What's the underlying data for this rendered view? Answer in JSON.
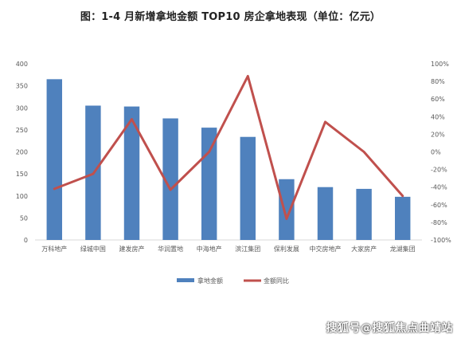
{
  "title": "图：1-4 月新增拿地金额 TOP10 房企拿地表现（单位：亿元）",
  "watermark": "搜狐号@搜狐焦点曲靖站",
  "colors": {
    "bar": "#4f81bd",
    "line": "#c0504d",
    "axis_text": "#595959",
    "axis_line": "#d9d9d9"
  },
  "chart_data": {
    "type": "bar",
    "categories": [
      "万科地产",
      "绿城中国",
      "建发房产",
      "华润置地",
      "中海地产",
      "滨江集团",
      "保利发展",
      "中交房地产",
      "大家房产",
      "龙湖集团"
    ],
    "series": [
      {
        "name": "拿地金额",
        "type": "bar",
        "axis": "left",
        "values": [
          365,
          305,
          303,
          276,
          255,
          234,
          138,
          120,
          116,
          98
        ]
      },
      {
        "name": "金额同比",
        "type": "line",
        "axis": "right",
        "values": [
          -42,
          -25,
          37,
          -43,
          0,
          86,
          -76,
          34,
          0,
          -50
        ]
      }
    ],
    "y_left": {
      "range": [
        0,
        400
      ],
      "ticks": [
        "0",
        "50",
        "100",
        "150",
        "200",
        "250",
        "300",
        "350",
        "400"
      ]
    },
    "y_right": {
      "range": [
        -100,
        100
      ],
      "ticks": [
        "-100%",
        "-80%",
        "-60%",
        "-40%",
        "-20%",
        "0%",
        "20%",
        "40%",
        "60%",
        "80%",
        "100%"
      ]
    },
    "legend_position": "bottom",
    "grid": false
  }
}
